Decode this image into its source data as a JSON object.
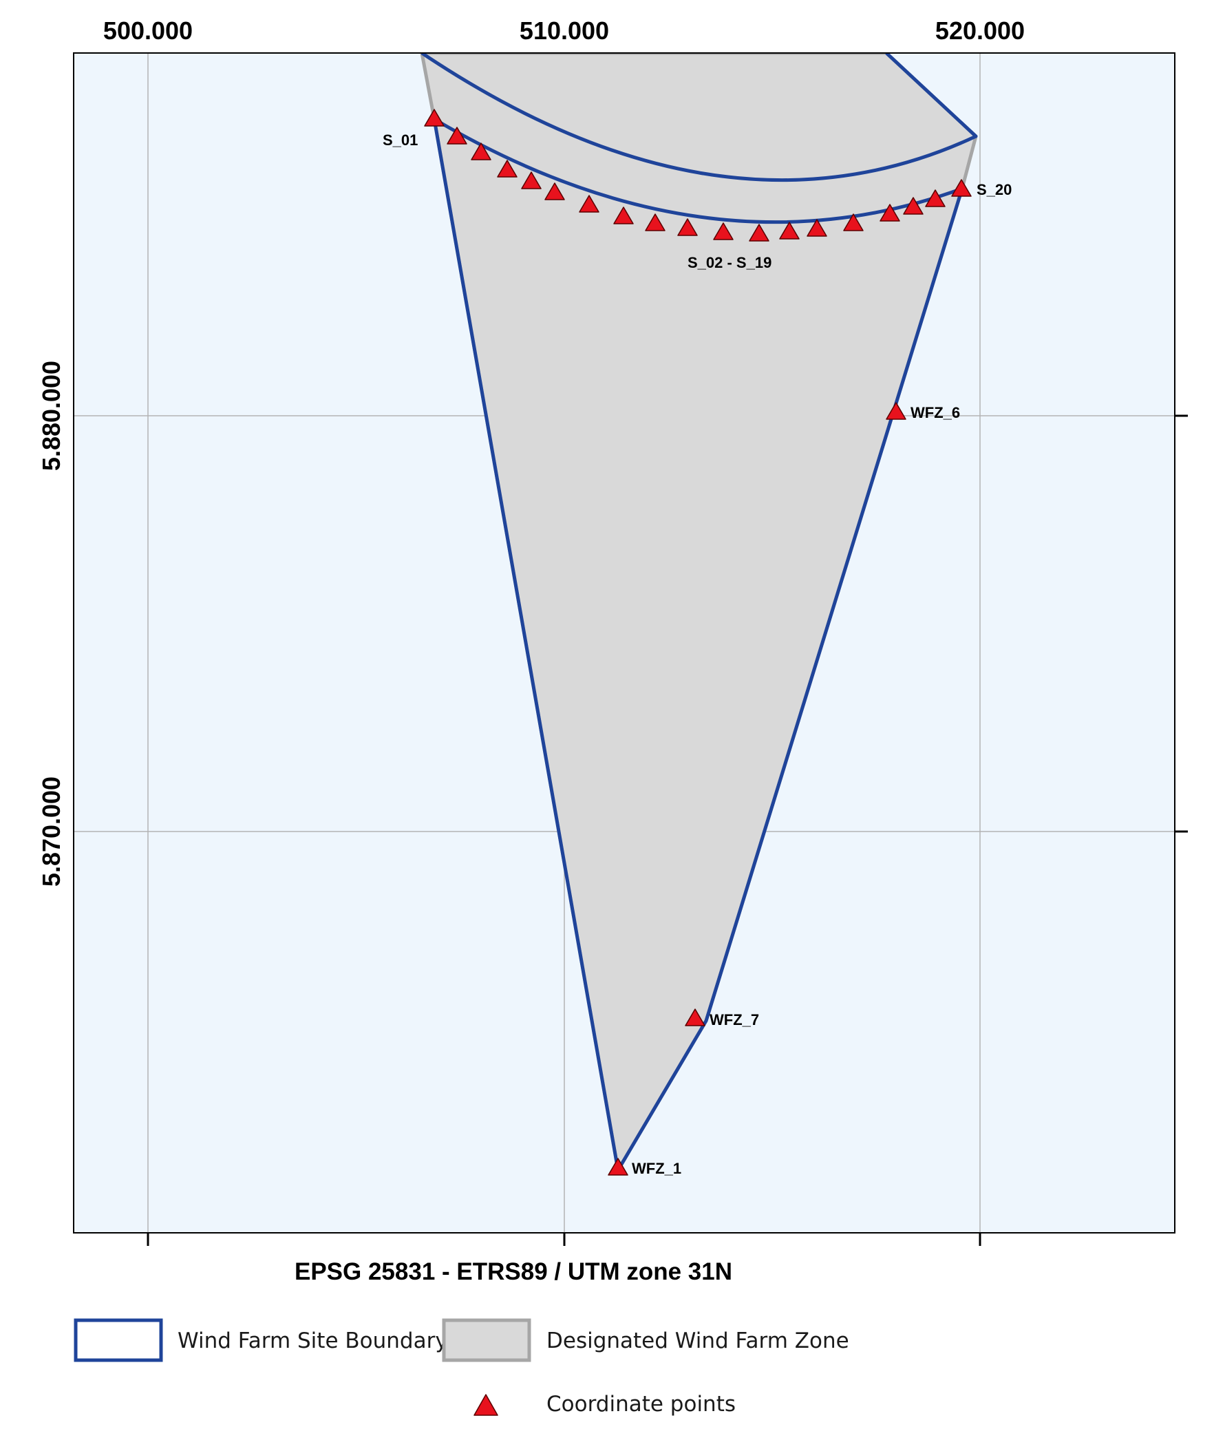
{
  "map": {
    "crs_label": "EPSG 25831 - ETRS89 / UTM zone 31N",
    "x_ticks": [
      {
        "value": 500000,
        "label": "500.000"
      },
      {
        "value": 510000,
        "label": "510.000"
      },
      {
        "value": 520000,
        "label": "520.000"
      }
    ],
    "y_ticks": [
      {
        "value": 5880000,
        "label": "5.880.000"
      },
      {
        "value": 5870000,
        "label": "5.870.000"
      }
    ],
    "colors": {
      "sea": "#eef6fd",
      "zone_fill": "#d9d9d9",
      "zone_outline": "#a6a6a6",
      "site_boundary": "#1f449a",
      "marker_fill": "#e8121d",
      "grid": "#b3b3b3"
    },
    "point_labels": [
      {
        "id": "S_01",
        "text": "S_01"
      },
      {
        "id": "S_20",
        "text": "S_20"
      },
      {
        "id": "S_02-S_19",
        "text": "S_02 - S_19"
      },
      {
        "id": "WFZ_6",
        "text": "WFZ_6"
      },
      {
        "id": "WFZ_7",
        "text": "WFZ_7"
      },
      {
        "id": "WFZ_1",
        "text": "WFZ_1"
      }
    ]
  },
  "legend": {
    "items": [
      {
        "symbol": "site-boundary",
        "label": "Wind Farm Site Boundary"
      },
      {
        "symbol": "designated-zone",
        "label": "Designated Wind Farm Zone"
      },
      {
        "symbol": "coordinate-point",
        "label": "Coordinate points"
      }
    ]
  }
}
